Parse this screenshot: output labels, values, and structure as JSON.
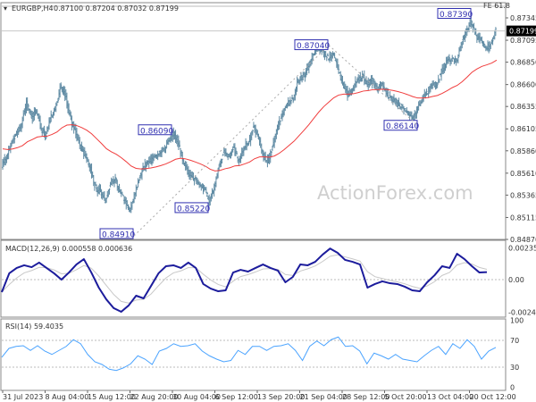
{
  "header": {
    "symbol": "EURGBP,H4",
    "ohlc": "0.87100 0.87204 0.87032 0.87199",
    "fe_label": "FE 61.8",
    "watermark": "ActionForex.com"
  },
  "colors": {
    "bars": "#5e8aa3",
    "ma": "#f03c3c",
    "macd": "#1c1c9c",
    "signal": "#c8c8c8",
    "rsi": "#4aa3ff",
    "annotation": "#3030b0",
    "current_price_bg": "#000000"
  },
  "chart_data": [
    {
      "type": "line",
      "name": "price",
      "title": "EURGBP,H4 0.87100 0.87204 0.87032 0.87199",
      "ylim": [
        0.8487,
        0.8739
      ],
      "y_ticks": [
        "0.87345",
        "0.87095",
        "0.86850",
        "0.86600",
        "0.86355",
        "0.86105",
        "0.85860",
        "0.85610",
        "0.85365",
        "0.85115",
        "0.84870"
      ],
      "current_price": "0.87199",
      "x_ticks": [
        "31 Jul 2023",
        "8 Aug 04:00",
        "15 Aug 12:00",
        "22 Aug 20:00",
        "30 Aug 04:00",
        "6 Sep 12:00",
        "13 Sep 20:00",
        "21 Sep 04:00",
        "28 Sep 12:00",
        "5 Oct 20:00",
        "13 Oct 04:00",
        "20 Oct 12:00"
      ],
      "closes": [
        0.85695,
        0.85795,
        0.85945,
        0.86045,
        0.86145,
        0.86395,
        0.86245,
        0.86295,
        0.86095,
        0.86045,
        0.86245,
        0.86345,
        0.86595,
        0.86445,
        0.86195,
        0.86045,
        0.85895,
        0.85795,
        0.85645,
        0.85445,
        0.85395,
        0.85295,
        0.85495,
        0.85545,
        0.85395,
        0.85295,
        0.85195,
        0.85395,
        0.85595,
        0.85695,
        0.85745,
        0.85795,
        0.85845,
        0.85895,
        0.85995,
        0.86045,
        0.85895,
        0.85695,
        0.85595,
        0.85545,
        0.85495,
        0.85445,
        0.85295,
        0.85445,
        0.85695,
        0.85845,
        0.85795,
        0.85895,
        0.85745,
        0.85895,
        0.85945,
        0.86145,
        0.85995,
        0.85795,
        0.85745,
        0.85945,
        0.86145,
        0.86295,
        0.86395,
        0.86445,
        0.86645,
        0.86695,
        0.86795,
        0.86945,
        0.86995,
        0.86965,
        0.86895,
        0.86945,
        0.86795,
        0.86595,
        0.86495,
        0.86545,
        0.86645,
        0.86695,
        0.86595,
        0.86645,
        0.86545,
        0.86595,
        0.86495,
        0.86445,
        0.86395,
        0.86345,
        0.86295,
        0.86245,
        0.86295,
        0.86445,
        0.86495,
        0.86595,
        0.86595,
        0.86745,
        0.86845,
        0.86895,
        0.86845,
        0.87045,
        0.87195,
        0.87295,
        0.87145,
        0.87095,
        0.86995,
        0.87045,
        0.87199
      ],
      "annotations": [
        {
          "label": "0.87390",
          "price": 0.8739
        },
        {
          "label": "0.87040",
          "price": 0.8704
        },
        {
          "label": "0.86090",
          "price": 0.8609
        },
        {
          "label": "0.85220",
          "price": 0.8522
        },
        {
          "label": "0.84910",
          "price": 0.8491
        },
        {
          "label": "0.86140",
          "price": 0.8614
        }
      ]
    },
    {
      "type": "line",
      "name": "MACD",
      "title": "MACD(12,26,9) 0.000558 0.000636",
      "ylim": [
        -0.002442,
        0.002356
      ],
      "y_ticks": [
        "0.002356",
        "0.00",
        "-0.002442"
      ],
      "values": [
        -0.00093,
        0.00047,
        0.00087,
        0.00107,
        0.00093,
        0.00127,
        0.00087,
        0.00047,
        0,
        0.00053,
        0.00113,
        0.00153,
        0.00053,
        -0.0006,
        -0.00147,
        -0.00213,
        -0.0024,
        -0.00193,
        -0.0012,
        -0.0014,
        -0.00047,
        0.00047,
        0.001,
        0.00107,
        0.00087,
        0.00127,
        0.00087,
        -0.00033,
        -0.00067,
        -0.00087,
        -0.0008,
        0.00053,
        0.00073,
        0.0006,
        0.00087,
        0.00113,
        0.00087,
        0.00067,
        -0.0002,
        0.0002,
        0.00113,
        0.00107,
        0.00133,
        0.00187,
        0.00232,
        0.002,
        0.00147,
        0.00133,
        0.00113,
        -0.0006,
        -0.00033,
        -0.00013,
        -0.00027,
        -0.00033,
        -0.00053,
        -0.0008,
        -0.00087,
        -0.0002,
        0.00033,
        0.001,
        0.00087,
        0.00193,
        0.00153,
        0.001,
        0.00053,
        0.000558
      ]
    },
    {
      "type": "line",
      "name": "RSI",
      "title": "RSI(14) 59.4035",
      "ylim": [
        0,
        100
      ],
      "y_ticks": [
        "100",
        "70",
        "30",
        "0"
      ],
      "levels": [
        70,
        30
      ],
      "values": [
        44.7,
        58,
        61,
        62,
        55,
        62,
        54,
        49,
        55,
        61,
        71,
        65,
        49,
        38,
        34,
        27,
        25,
        29,
        35,
        47,
        42,
        34,
        54,
        58,
        65,
        61,
        62,
        65,
        54,
        47,
        42,
        38,
        40,
        55,
        49,
        61,
        61,
        55,
        61,
        62,
        65,
        55,
        40,
        61,
        69,
        62,
        71,
        75,
        61,
        62,
        54,
        35,
        51,
        47,
        42,
        49,
        42,
        40,
        38,
        47,
        55,
        61,
        49,
        65,
        58,
        71,
        61,
        42,
        54,
        59.4
      ]
    }
  ]
}
